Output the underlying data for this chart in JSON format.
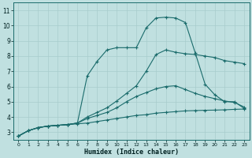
{
  "background_color": "#c0e0e0",
  "grid_color": "#a8cccc",
  "line_color": "#1a6b6b",
  "xlabel": "Humidex (Indice chaleur)",
  "xlim": [
    -0.5,
    23.5
  ],
  "ylim": [
    2.5,
    11.5
  ],
  "xticks": [
    0,
    1,
    2,
    3,
    4,
    5,
    6,
    7,
    8,
    9,
    10,
    11,
    12,
    13,
    14,
    15,
    16,
    17,
    18,
    19,
    20,
    21,
    22,
    23
  ],
  "yticks": [
    3,
    4,
    5,
    6,
    7,
    8,
    9,
    10,
    11
  ],
  "line1_x": [
    0,
    1,
    2,
    3,
    4,
    5,
    6,
    7,
    8,
    9,
    10,
    11,
    12,
    13,
    14,
    15,
    16,
    17,
    18,
    19,
    20,
    21,
    22,
    23
  ],
  "line1_y": [
    2.75,
    3.1,
    3.3,
    3.4,
    3.45,
    3.5,
    3.55,
    3.6,
    3.7,
    3.8,
    3.9,
    4.0,
    4.1,
    4.15,
    4.25,
    4.3,
    4.35,
    4.4,
    4.42,
    4.44,
    4.45,
    4.47,
    4.5,
    4.52
  ],
  "line2_x": [
    0,
    1,
    2,
    3,
    4,
    5,
    6,
    7,
    8,
    9,
    10,
    11,
    12,
    13,
    14,
    15,
    16,
    17,
    18,
    19,
    20,
    21,
    22,
    23
  ],
  "line2_y": [
    2.75,
    3.1,
    3.3,
    3.4,
    3.45,
    3.5,
    3.6,
    3.9,
    4.1,
    4.3,
    4.6,
    5.0,
    5.35,
    5.6,
    5.85,
    6.0,
    6.05,
    5.8,
    5.55,
    5.35,
    5.2,
    5.05,
    4.95,
    4.65
  ],
  "line3_x": [
    0,
    1,
    2,
    3,
    4,
    5,
    6,
    7,
    8,
    9,
    10,
    11,
    12,
    13,
    14,
    15,
    16,
    17,
    18,
    19,
    20,
    21,
    22,
    23
  ],
  "line3_y": [
    2.75,
    3.1,
    3.3,
    3.4,
    3.45,
    3.5,
    3.6,
    4.0,
    4.3,
    4.6,
    5.05,
    5.55,
    6.05,
    7.0,
    8.1,
    8.4,
    8.25,
    8.15,
    8.1,
    8.0,
    7.9,
    7.7,
    7.6,
    7.5
  ],
  "line4_x": [
    0,
    1,
    2,
    3,
    4,
    5,
    6,
    7,
    8,
    9,
    10,
    11,
    12,
    13,
    14,
    15,
    16,
    17,
    18,
    19,
    20,
    21,
    22,
    23
  ],
  "line4_y": [
    2.75,
    3.1,
    3.3,
    3.4,
    3.45,
    3.5,
    3.6,
    6.7,
    7.65,
    8.4,
    8.55,
    8.55,
    8.55,
    9.85,
    10.5,
    10.55,
    10.5,
    10.2,
    8.2,
    6.15,
    5.45,
    5.0,
    5.0,
    4.55
  ]
}
